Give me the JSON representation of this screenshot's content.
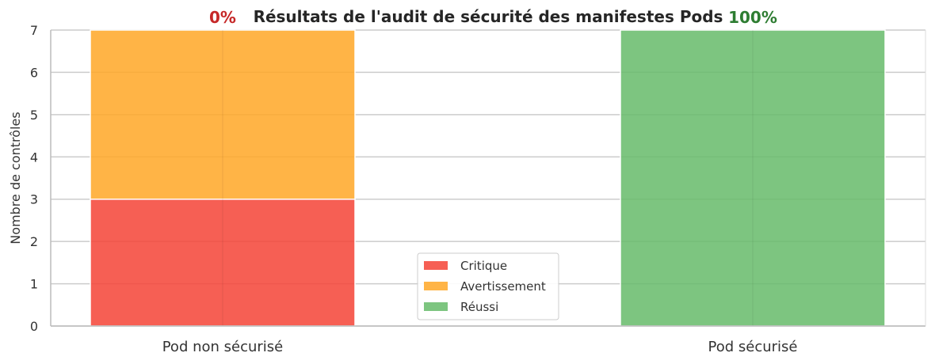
{
  "chart_data": {
    "type": "bar",
    "stacked": true,
    "title": "Résultats de l'audit de sécurité des manifestes Pods",
    "xlabel": "",
    "ylabel": "Nombre de contrôles",
    "ylim": [
      0,
      7
    ],
    "yticks": [
      "0",
      "1",
      "2",
      "3",
      "4",
      "5",
      "6",
      "7"
    ],
    "categories": [
      "Pod non sécurisé",
      "Pod sécurisé"
    ],
    "series": [
      {
        "name": "Critique",
        "color": "#f44336",
        "values": [
          3,
          0
        ]
      },
      {
        "name": "Avertissement",
        "color": "#ffa726",
        "values": [
          4,
          0
        ]
      },
      {
        "name": "Réussi",
        "color": "#66bb6a",
        "values": [
          0,
          7
        ]
      }
    ],
    "annotations": [
      {
        "category": "Pod non sécurisé",
        "text": "0%",
        "color": "#c62828"
      },
      {
        "category": "Pod sécurisé",
        "text": "100%",
        "color": "#2e7d32"
      }
    ],
    "grid": true,
    "legend_position": "lower-center"
  }
}
